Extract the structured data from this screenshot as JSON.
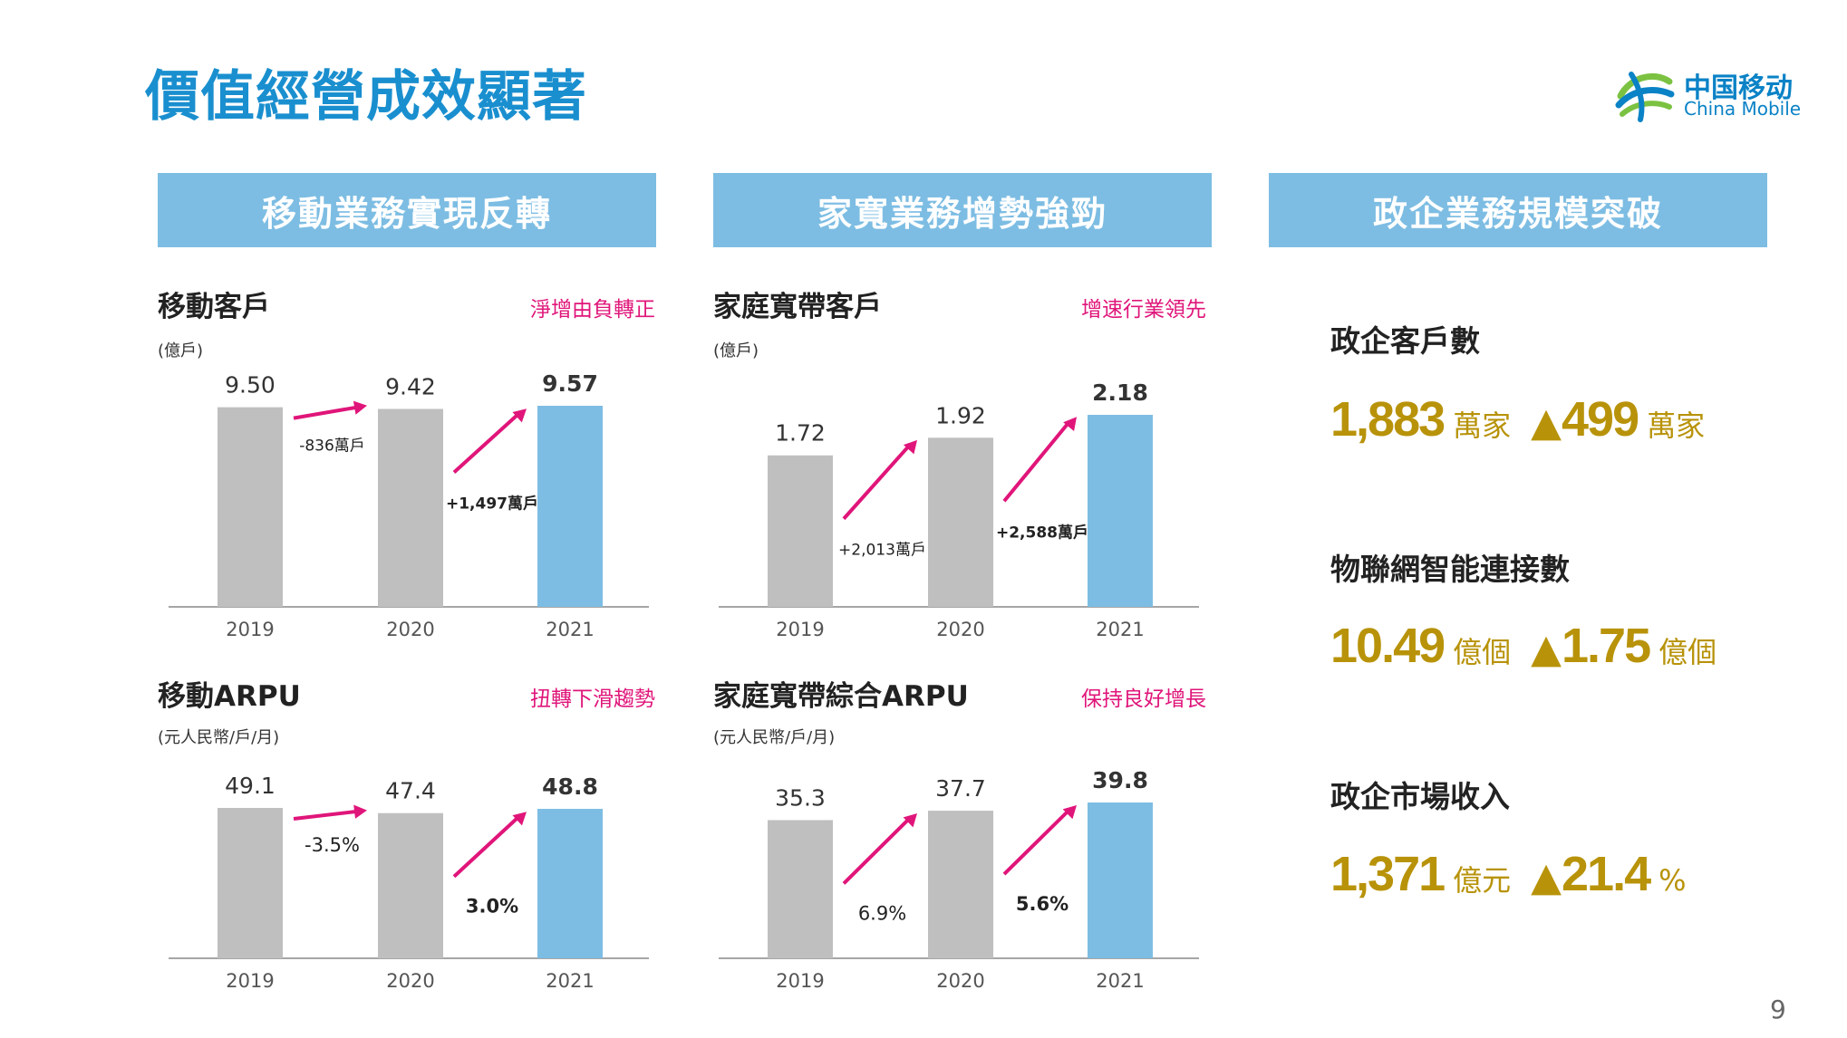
{
  "page": {
    "title": "價值經營成效顯著",
    "page_number": "9"
  },
  "logo": {
    "cn": "中国移动",
    "en": "China Mobile"
  },
  "panels": [
    {
      "header": "移動業務實現反轉"
    },
    {
      "header": "家寬業務增勢強勁"
    },
    {
      "header": "政企業務規模突破"
    }
  ],
  "colors": {
    "bar_past": "#bfbfbf",
    "bar_current": "#7dbde3",
    "arrow": "#e0157a",
    "accent_gold": "#b8930a",
    "header_bg": "#7dbde3",
    "title_blue": "#1a8fcf"
  },
  "chart_data": [
    {
      "type": "bar",
      "title": "移動客戶",
      "unit": "(億戶)",
      "note": "淨增由負轉正",
      "categories": [
        "2019",
        "2020",
        "2021"
      ],
      "values": [
        9.5,
        9.42,
        9.57
      ],
      "value_labels": [
        "9.50",
        "9.42",
        "9.57"
      ],
      "changes": [
        "-836萬戶",
        "+1,497萬戶"
      ],
      "change_bold": [
        false,
        true
      ]
    },
    {
      "type": "bar",
      "title": "家庭寬帶客戶",
      "unit": "(億戶)",
      "note": "增速行業領先",
      "categories": [
        "2019",
        "2020",
        "2021"
      ],
      "values": [
        1.72,
        1.92,
        2.18
      ],
      "value_labels": [
        "1.72",
        "1.92",
        "2.18"
      ],
      "changes": [
        "+2,013萬戶",
        "+2,588萬戶"
      ],
      "change_bold": [
        false,
        true
      ]
    },
    {
      "type": "bar",
      "title": "移動ARPU",
      "unit": "(元人民幣/戶/月)",
      "note": "扭轉下滑趨勢",
      "categories": [
        "2019",
        "2020",
        "2021"
      ],
      "values": [
        49.1,
        47.4,
        48.8
      ],
      "value_labels": [
        "49.1",
        "47.4",
        "48.8"
      ],
      "changes": [
        "-3.5%",
        "3.0%"
      ],
      "change_bold": [
        false,
        true
      ]
    },
    {
      "type": "bar",
      "title": "家庭寬帶綜合ARPU",
      "unit": "(元人民幣/戶/月)",
      "note": "保持良好增長",
      "categories": [
        "2019",
        "2020",
        "2021"
      ],
      "values": [
        35.3,
        37.7,
        39.8
      ],
      "value_labels": [
        "35.3",
        "37.7",
        "39.8"
      ],
      "changes": [
        "6.9%",
        "5.6%"
      ],
      "change_bold": [
        false,
        true
      ]
    }
  ],
  "metrics": [
    {
      "label": "政企客戶數",
      "value": "1,883",
      "unit": "萬家",
      "change_symbol": "▲",
      "change": "499",
      "change_unit": "萬家"
    },
    {
      "label": "物聯網智能連接數",
      "value": "10.49",
      "unit": "億個",
      "change_symbol": "▲",
      "change": "1.75",
      "change_unit": "億個"
    },
    {
      "label": "政企市場收入",
      "value": "1,371",
      "unit": "億元",
      "change_symbol": "▲",
      "change": "21.4",
      "change_unit": "%"
    }
  ]
}
